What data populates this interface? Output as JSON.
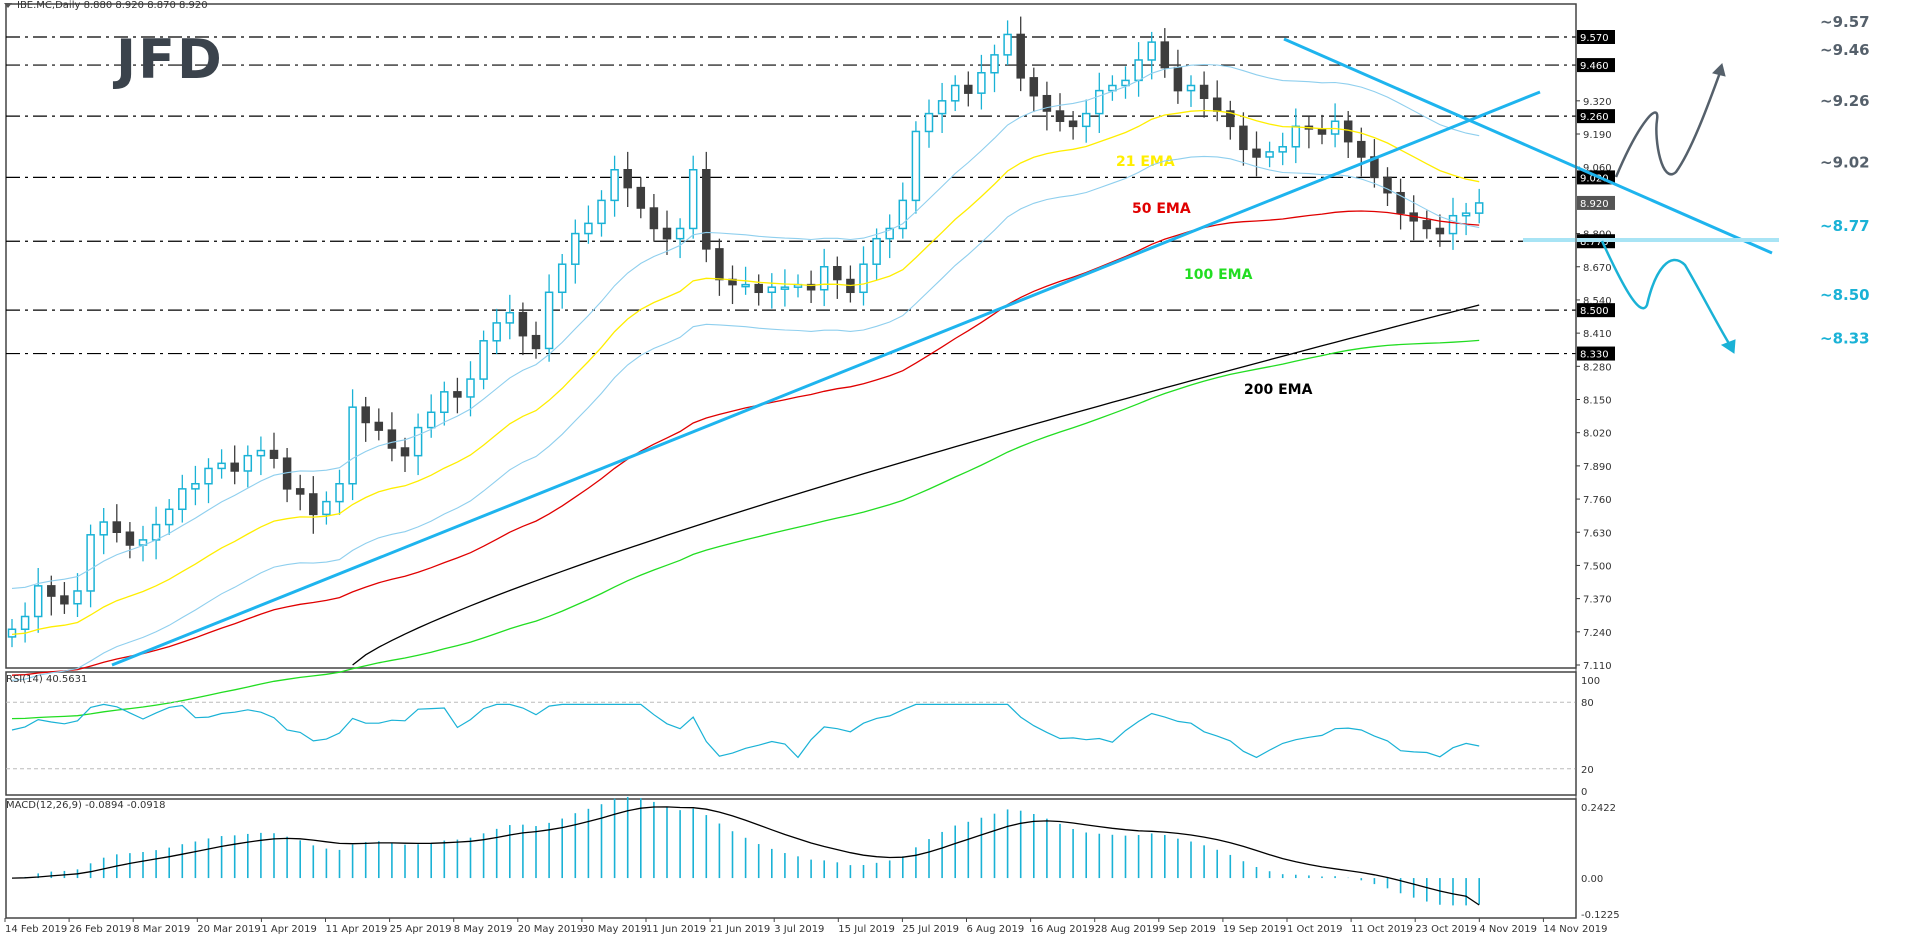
{
  "header": {
    "symbol_line": "IBE.MC,Daily  8.880 8.920 8.870 8.920"
  },
  "logo": {
    "text": "JFD"
  },
  "indicators": {
    "rsi_label": "RSI(14) 40.5631",
    "macd_label": "MACD(12,26,9) -0.0894 -0.0918"
  },
  "colors": {
    "bull_candle": "#1ab2d6",
    "bear_candle": "#3d3d3d",
    "ema21": "#ffee00",
    "ema50": "#e00000",
    "ema100": "#22dd22",
    "ema200": "#000000",
    "bollinger": "#8fcfee",
    "trendline": "#1eb4ee",
    "level_dark": "#55606b",
    "level_blue": "#1ab2d6",
    "rsi": "#1ab2d6",
    "macd_hist": "#1ab2d6",
    "macd_signal": "#000000"
  },
  "chart_data": [
    {
      "type": "candlestick",
      "title": "IBE.MC, Daily",
      "ohlc_last": {
        "open": 8.88,
        "high": 8.92,
        "low": 8.87,
        "close": 8.92
      },
      "ylim": [
        7.11,
        9.69
      ],
      "y_ticks": [
        9.32,
        9.19,
        9.06,
        8.8,
        8.67,
        8.54,
        8.41,
        8.28,
        8.15,
        8.02,
        7.89,
        7.76,
        7.63,
        7.5,
        7.37,
        7.24,
        7.11
      ],
      "x_ticks": [
        "14 Feb 2019",
        "26 Feb 2019",
        "8 Mar 2019",
        "20 Mar 2019",
        "1 Apr 2019",
        "11 Apr 2019",
        "25 Apr 2019",
        "8 May 2019",
        "20 May 2019",
        "30 May 2019",
        "11 Jun 2019",
        "21 Jun 2019",
        "3 Jul 2019",
        "15 Jul 2019",
        "25 Jul 2019",
        "6 Aug 2019",
        "16 Aug 2019",
        "28 Aug 2019",
        "9 Sep 2019",
        "19 Sep 2019",
        "1 Oct 2019",
        "11 Oct 2019",
        "23 Oct 2019",
        "4 Nov 2019",
        "14 Nov 2019"
      ],
      "horizontal_levels": [
        {
          "value": 9.57,
          "label": "~9.57",
          "tag": "9.570",
          "color": "dark"
        },
        {
          "value": 9.46,
          "label": "~9.46",
          "tag": "9.460",
          "color": "dark"
        },
        {
          "value": 9.26,
          "label": "~9.26",
          "tag": "9.260",
          "color": "dark"
        },
        {
          "value": 9.02,
          "label": "~9.02",
          "tag": "9.020",
          "color": "dark"
        },
        {
          "value": 8.77,
          "label": "~8.77",
          "tag": "8.770",
          "color": "blue"
        },
        {
          "value": 8.5,
          "label": "~8.50",
          "tag": "8.500",
          "color": "blue"
        },
        {
          "value": 8.33,
          "label": "~8.33",
          "tag": "8.330",
          "color": "blue"
        }
      ],
      "current_price_tag": "8.920",
      "moving_averages": [
        {
          "name": "21 EMA",
          "last": 8.95
        },
        {
          "name": "50 EMA",
          "last": 9.08
        },
        {
          "name": "100 EMA",
          "last": 8.93
        },
        {
          "name": "200 EMA",
          "last": 8.52
        }
      ],
      "close_series_approx": [
        7.25,
        7.3,
        7.42,
        7.38,
        7.35,
        7.4,
        7.62,
        7.67,
        7.63,
        7.58,
        7.6,
        7.66,
        7.72,
        7.8,
        7.82,
        7.88,
        7.9,
        7.87,
        7.93,
        7.95,
        7.92,
        7.8,
        7.78,
        7.7,
        7.75,
        7.82,
        8.12,
        8.06,
        8.03,
        7.96,
        7.93,
        8.04,
        8.1,
        8.18,
        8.16,
        8.23,
        8.38,
        8.45,
        8.49,
        8.4,
        8.35,
        8.57,
        8.68,
        8.8,
        8.84,
        8.93,
        9.05,
        8.98,
        8.9,
        8.82,
        8.78,
        8.82,
        9.05,
        8.74,
        8.62,
        8.6,
        8.6,
        8.57,
        8.59,
        8.59,
        8.6,
        8.58,
        8.67,
        8.62,
        8.57,
        8.68,
        8.78,
        8.82,
        8.93,
        9.2,
        9.27,
        9.32,
        9.38,
        9.35,
        9.43,
        9.5,
        9.58,
        9.41,
        9.34,
        9.28,
        9.24,
        9.22,
        9.27,
        9.36,
        9.38,
        9.4,
        9.48,
        9.55,
        9.45,
        9.36,
        9.38,
        9.33,
        9.28,
        9.22,
        9.13,
        9.1,
        9.12,
        9.14,
        9.22,
        9.21,
        9.19,
        9.24,
        9.16,
        9.1,
        9.02,
        8.96,
        8.88,
        8.85,
        8.82,
        8.8,
        8.87,
        8.88,
        8.92
      ]
    },
    {
      "type": "line",
      "title": "RSI(14)",
      "last": 40.5631,
      "ylim": [
        0,
        100
      ],
      "y_ticks": [
        100,
        80,
        20,
        0
      ],
      "levels": [
        80,
        20
      ]
    },
    {
      "type": "bar",
      "title": "MACD(12,26,9)",
      "macd_last": -0.0894,
      "signal_last": -0.0918,
      "ylim": [
        -0.1225,
        0.2422
      ],
      "y_ticks": [
        0.2422,
        0.0,
        -0.1225
      ]
    }
  ]
}
